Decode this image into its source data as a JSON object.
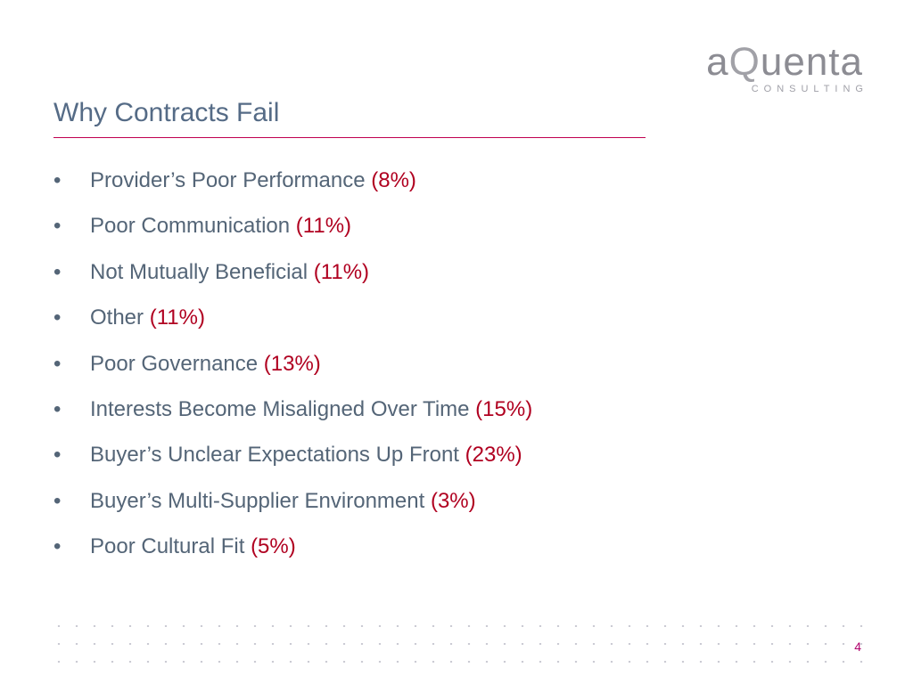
{
  "logo": {
    "word_a": "a",
    "word_q": "Q",
    "word_rest": "uenta",
    "subtitle": "CONSULTING"
  },
  "slide": {
    "title": "Why Contracts Fail",
    "bullet_char": "•",
    "page_number": "4"
  },
  "bullets": [
    {
      "text": "Provider’s Poor Performance",
      "pct": "(8%)"
    },
    {
      "text": "Poor Communication",
      "pct": "(11%)"
    },
    {
      "text": "Not Mutually Beneficial",
      "pct": "(11%)"
    },
    {
      "text": "Other",
      "pct": "(11%)"
    },
    {
      "text": "Poor Governance",
      "pct": "(13%)"
    },
    {
      "text": "Interests Become Misaligned Over Time",
      "pct": "(15%)"
    },
    {
      "text": "Buyer’s Unclear Expectations Up Front",
      "pct": "(23%)"
    },
    {
      "text": "Buyer’s Multi-Supplier Environment",
      "pct": "(3%)"
    },
    {
      "text": "Poor Cultural Fit",
      "pct": "(5%)"
    }
  ],
  "colors": {
    "title": "#556b86",
    "body_text": "#546577",
    "percentage": "#b00020",
    "rule": "#c0004f",
    "page_number": "#b0006b",
    "logo": "#8c8c93"
  }
}
